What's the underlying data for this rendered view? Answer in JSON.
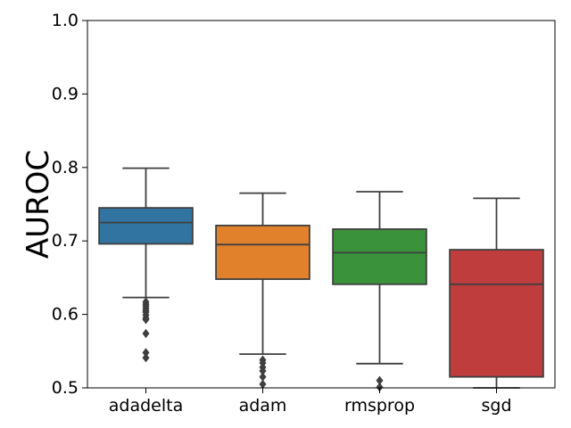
{
  "chart_data": {
    "type": "box",
    "title": "",
    "xlabel": "",
    "ylabel": "AUROC",
    "ylim": [
      0.5,
      1.0
    ],
    "yticks": [
      "0.5",
      "0.6",
      "0.7",
      "0.8",
      "0.9",
      "1.0"
    ],
    "grid": false,
    "categories": [
      "adadelta",
      "adam",
      "rmsprop",
      "sgd"
    ],
    "colors": [
      "#3274a1",
      "#e1812c",
      "#3a923a",
      "#c03d3e"
    ],
    "boxes": [
      {
        "name": "adadelta",
        "whisker_low": 0.623,
        "q1": 0.696,
        "median": 0.725,
        "q3": 0.745,
        "whisker_high": 0.799,
        "outliers": [
          0.617,
          0.614,
          0.611,
          0.608,
          0.605,
          0.603,
          0.599,
          0.595,
          0.593,
          0.574,
          0.548,
          0.541
        ]
      },
      {
        "name": "adam",
        "whisker_low": 0.546,
        "q1": 0.648,
        "median": 0.695,
        "q3": 0.721,
        "whisker_high": 0.765,
        "outliers": [
          0.538,
          0.534,
          0.528,
          0.523,
          0.515,
          0.505
        ]
      },
      {
        "name": "rmsprop",
        "whisker_low": 0.533,
        "q1": 0.641,
        "median": 0.684,
        "q3": 0.716,
        "whisker_high": 0.767,
        "outliers": [
          0.51,
          0.501
        ]
      },
      {
        "name": "sgd",
        "whisker_low": 0.5,
        "q1": 0.515,
        "median": 0.641,
        "q3": 0.688,
        "whisker_high": 0.758,
        "outliers": []
      }
    ]
  }
}
